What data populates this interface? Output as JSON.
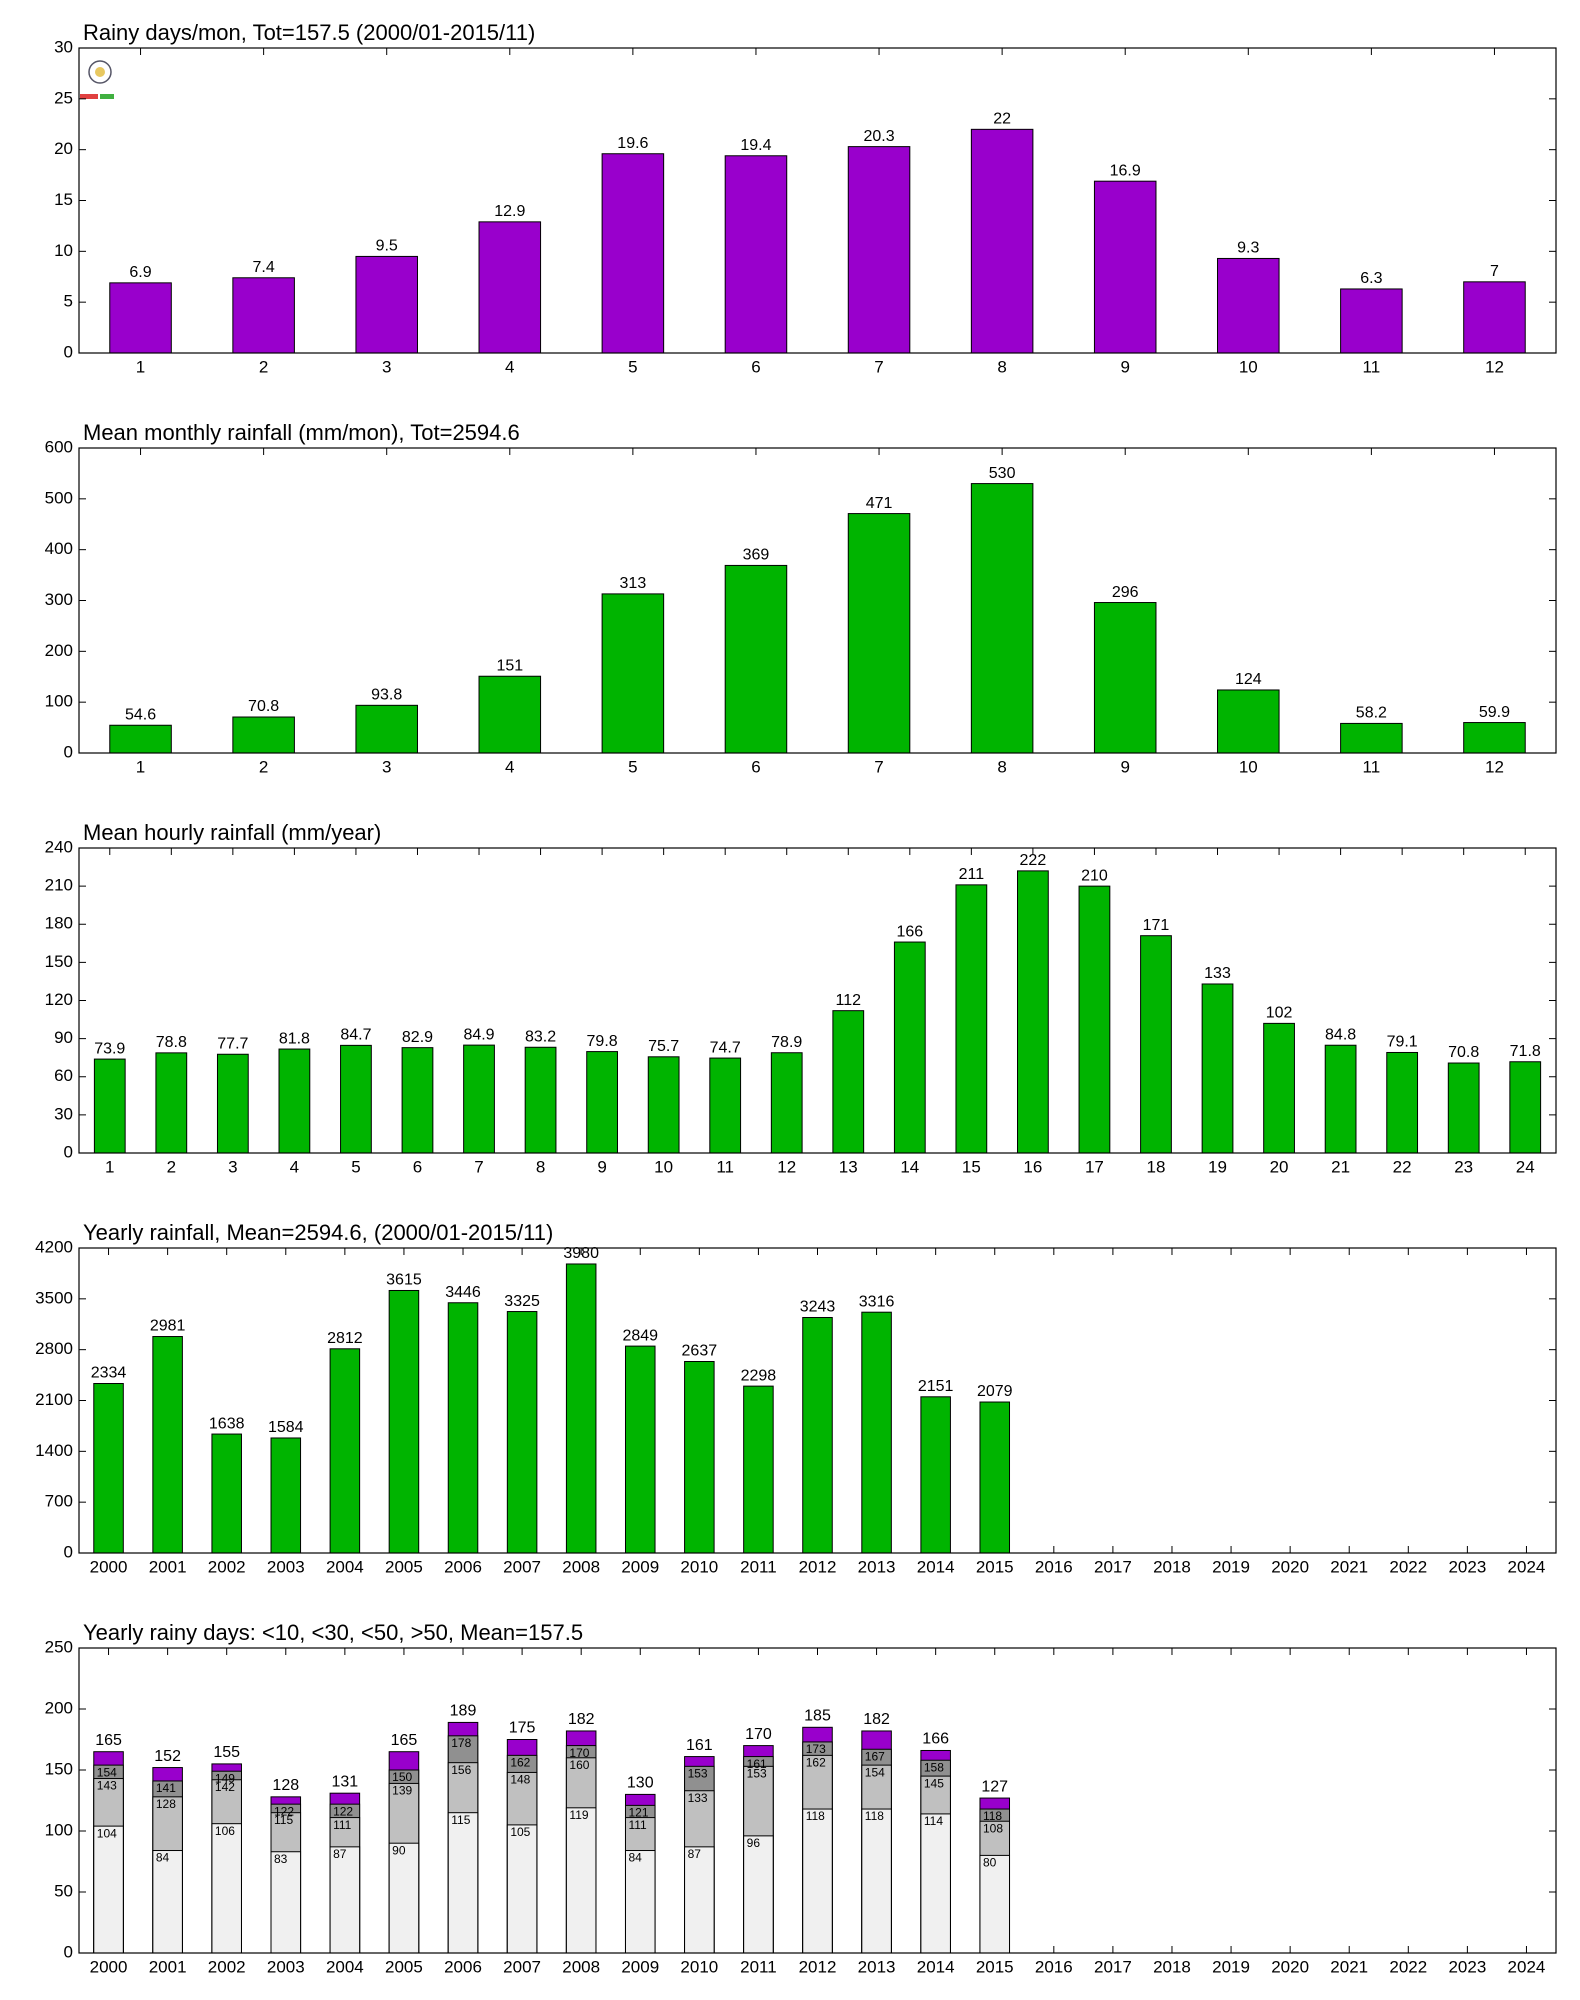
{
  "chart_data": [
    {
      "type": "bar",
      "title": "Rainy days/mon, Tot=157.5 (2000/01-2015/11)",
      "categories": [
        "1",
        "2",
        "3",
        "4",
        "5",
        "6",
        "7",
        "8",
        "9",
        "10",
        "11",
        "12"
      ],
      "values": [
        6.9,
        7.4,
        9.5,
        12.9,
        19.6,
        19.4,
        20.3,
        22,
        16.9,
        9.3,
        6.3,
        7
      ],
      "color": "#9900cc",
      "ylim": [
        0,
        30
      ],
      "yticks": [
        0,
        5,
        10,
        15,
        20,
        25,
        30
      ]
    },
    {
      "type": "bar",
      "title": "Mean monthly rainfall (mm/mon), Tot=2594.6",
      "categories": [
        "1",
        "2",
        "3",
        "4",
        "5",
        "6",
        "7",
        "8",
        "9",
        "10",
        "11",
        "12"
      ],
      "values": [
        54.6,
        70.8,
        93.8,
        151,
        313,
        369,
        471,
        530,
        296,
        124,
        58.2,
        59.9
      ],
      "color": "#00b400",
      "ylim": [
        0,
        600
      ],
      "yticks": [
        0,
        100,
        200,
        300,
        400,
        500,
        600
      ]
    },
    {
      "type": "bar",
      "title": "Mean hourly rainfall (mm/year)",
      "categories": [
        "1",
        "2",
        "3",
        "4",
        "5",
        "6",
        "7",
        "8",
        "9",
        "10",
        "11",
        "12",
        "13",
        "14",
        "15",
        "16",
        "17",
        "18",
        "19",
        "20",
        "21",
        "22",
        "23",
        "24"
      ],
      "values": [
        73.9,
        78.8,
        77.7,
        81.8,
        84.7,
        82.9,
        84.9,
        83.2,
        79.8,
        75.7,
        74.7,
        78.9,
        112,
        166,
        211,
        222,
        210,
        171,
        133,
        102,
        84.8,
        79.1,
        70.8,
        71.8
      ],
      "color": "#00b400",
      "ylim": [
        0,
        240
      ],
      "yticks": [
        0,
        30,
        60,
        90,
        120,
        150,
        180,
        210,
        240
      ]
    },
    {
      "type": "bar",
      "title": "Yearly rainfall, Mean=2594.6, (2000/01-2015/11)",
      "categories": [
        "2000",
        "2001",
        "2002",
        "2003",
        "2004",
        "2005",
        "2006",
        "2007",
        "2008",
        "2009",
        "2010",
        "2011",
        "2012",
        "2013",
        "2014",
        "2015",
        "2016",
        "2017",
        "2018",
        "2019",
        "2020",
        "2021",
        "2022",
        "2023",
        "2024"
      ],
      "values": [
        2334,
        2981,
        1638,
        1584,
        2812,
        3615,
        3446,
        3325,
        3980,
        2849,
        2637,
        2298,
        3243,
        3316,
        2151,
        2079,
        null,
        null,
        null,
        null,
        null,
        null,
        null,
        null,
        null
      ],
      "color": "#00b400",
      "ylim": [
        0,
        4200
      ],
      "yticks": [
        0,
        700,
        1400,
        2100,
        2800,
        3500,
        4200
      ]
    },
    {
      "type": "overlaybar",
      "title": "Yearly rainy days: <10, <30, <50, >50, Mean=157.5",
      "categories": [
        "2000",
        "2001",
        "2002",
        "2003",
        "2004",
        "2005",
        "2006",
        "2007",
        "2008",
        "2009",
        "2010",
        "2011",
        "2012",
        "2013",
        "2014",
        "2015",
        "2016",
        "2017",
        "2018",
        "2019",
        "2020",
        "2021",
        "2022",
        "2023",
        "2024"
      ],
      "series": [
        {
          "color": "#f0f0f0",
          "values": [
            104,
            84,
            106,
            83,
            87,
            90,
            115,
            105,
            119,
            84,
            87,
            96,
            118,
            118,
            114,
            80,
            null,
            null,
            null,
            null,
            null,
            null,
            null,
            null,
            null
          ]
        },
        {
          "color": "#c0c0c0",
          "values": [
            143,
            128,
            142,
            115,
            111,
            139,
            156,
            148,
            160,
            111,
            133,
            153,
            162,
            154,
            145,
            108,
            null,
            null,
            null,
            null,
            null,
            null,
            null,
            null,
            null
          ]
        },
        {
          "color": "#909090",
          "values": [
            154,
            141,
            149,
            122,
            122,
            150,
            178,
            162,
            170,
            121,
            153,
            161,
            173,
            167,
            158,
            118,
            null,
            null,
            null,
            null,
            null,
            null,
            null,
            null,
            null
          ]
        },
        {
          "color": "#9900cc",
          "values": [
            165,
            152,
            155,
            128,
            131,
            165,
            189,
            175,
            182,
            130,
            161,
            170,
            185,
            182,
            166,
            127,
            null,
            null,
            null,
            null,
            null,
            null,
            null,
            null,
            null
          ]
        }
      ],
      "ylim": [
        0,
        250
      ],
      "yticks": [
        0,
        50,
        100,
        150,
        200,
        250
      ]
    }
  ]
}
